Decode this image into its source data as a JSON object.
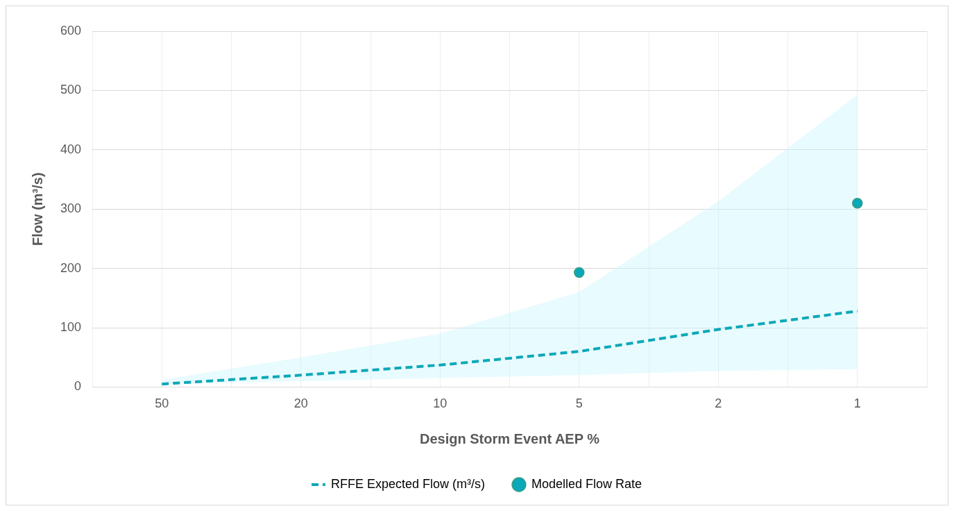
{
  "chart_data": {
    "type": "line",
    "xlabel": "Design Storm Event AEP %",
    "ylabel": "Flow (m³/s)",
    "categories": [
      null,
      "50",
      null,
      "20",
      null,
      "10",
      null,
      "5",
      null,
      "2",
      null,
      "1",
      null
    ],
    "series": [
      {
        "name": "RFFE Expected Flow (m³/s)",
        "color": "#0aa8b8",
        "line_style": "dashed",
        "marker": "none",
        "x": [
          "50",
          "20",
          "10",
          "5",
          "2",
          "1"
        ],
        "values": [
          5,
          20,
          37,
          60,
          97,
          128
        ],
        "lower": [
          5,
          10,
          15,
          20,
          27,
          30
        ],
        "upper": [
          12,
          50,
          90,
          160,
          313,
          493
        ]
      },
      {
        "name": "Modelled Flow Rate",
        "type": "scatter",
        "color": "#0aa8b8",
        "marker": "circle",
        "x": [
          "5",
          "1"
        ],
        "values": [
          193,
          310
        ]
      }
    ],
    "ylim": [
      0,
      600
    ],
    "yticks": [
      0,
      100,
      200,
      300,
      400,
      500,
      600
    ],
    "grid": true,
    "legend": "bottom"
  }
}
